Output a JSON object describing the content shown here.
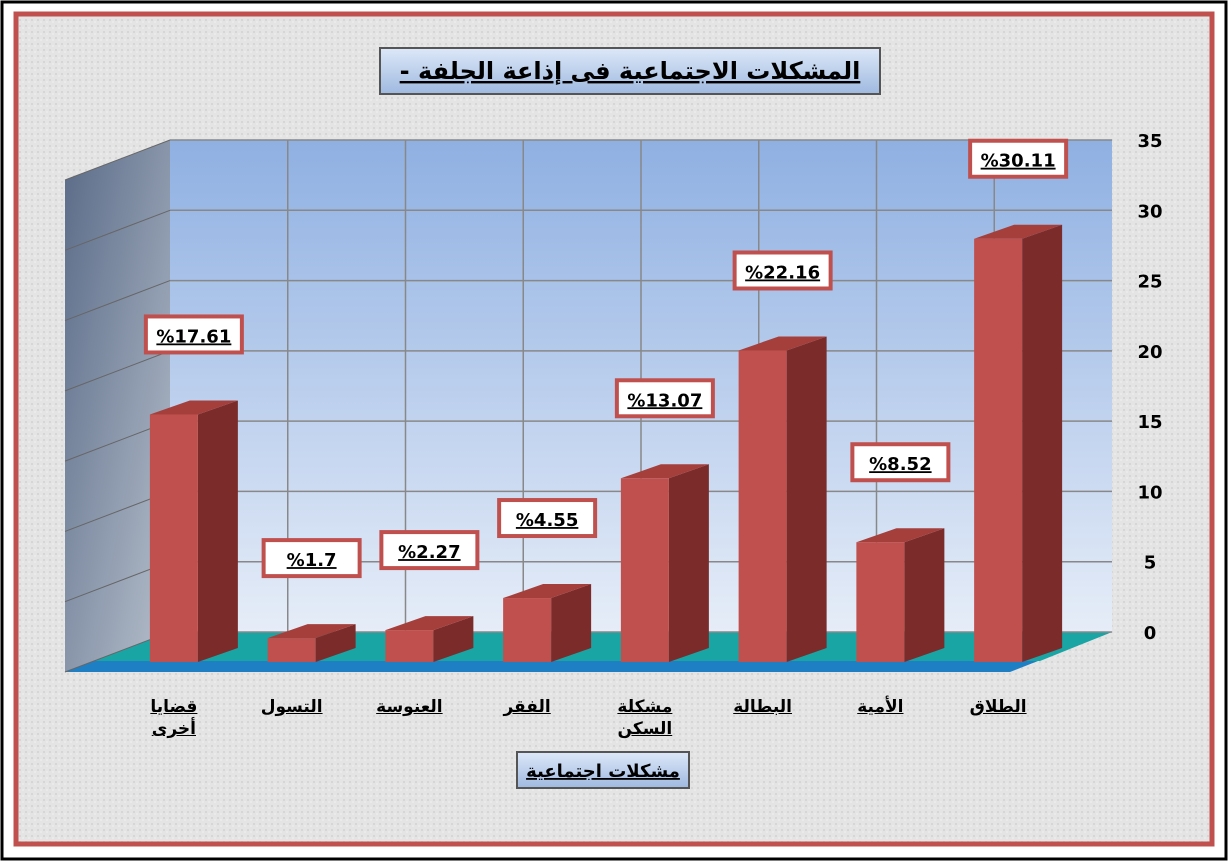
{
  "chart_data": {
    "type": "bar3d",
    "title": "المشكلات الاجتماعية فى إذاعة الجلفة -",
    "x_label": "مشكلات اجتماعية",
    "categories": [
      "قضايا أخرى",
      "التسول",
      "العنوسة",
      "الفقر",
      "مشكلة السكن",
      "البطالة",
      "الأمية",
      "الطلاق"
    ],
    "values": [
      17.61,
      1.7,
      2.27,
      4.55,
      13.07,
      22.16,
      8.52,
      30.11
    ],
    "value_labels": [
      "%17.61",
      "%1.7",
      "%2.27",
      "%4.55",
      "%13.07",
      "%22.16",
      "%8.52",
      "%30.11"
    ],
    "color": "#c0504d",
    "ylim": [
      0,
      35
    ],
    "yticks": [
      0,
      5,
      10,
      15,
      20,
      25,
      30,
      35
    ],
    "grid": true,
    "y_axis_side": "right"
  }
}
